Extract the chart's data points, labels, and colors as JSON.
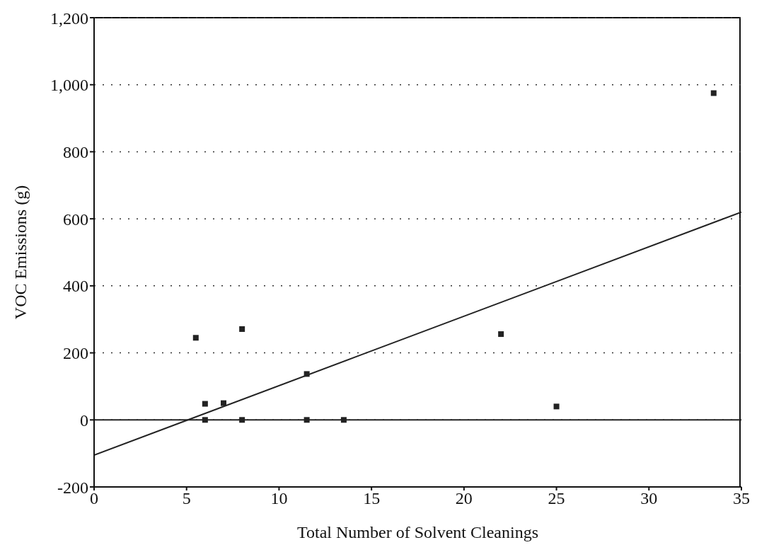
{
  "chart_data": {
    "type": "scatter",
    "xlabel": "Total Number of Solvent Cleanings",
    "ylabel": "VOC Emissions (g)",
    "xlim": [
      0,
      35
    ],
    "xticks": [
      0,
      5,
      10,
      15,
      20,
      25,
      30,
      35
    ],
    "ylim": [
      -200,
      1200
    ],
    "yticks": [
      -200,
      0,
      {
        "value": 200,
        "label": "200"
      },
      400,
      600,
      800,
      {
        "value": 1000,
        "label": "1,000"
      },
      {
        "value": 1200,
        "label": "1,200"
      }
    ],
    "grid": "y",
    "marker": "square",
    "legend": false,
    "series": [
      {
        "color": "#222222",
        "x": [
          5.5,
          8,
          6,
          7,
          11.5,
          6,
          8,
          11.5,
          13.5,
          22,
          25,
          33.5
        ],
        "values": [
          245,
          271,
          48,
          50,
          137,
          0,
          0,
          0,
          0,
          256,
          40,
          975
        ]
      },
      {
        "type": "line",
        "color": "#222222",
        "x": [
          0,
          35
        ],
        "values": [
          -105,
          620
        ],
        "line_style": "solid",
        "marker": "none"
      }
    ],
    "ref_lines": [
      {
        "axis": "y",
        "value": 0,
        "color": "#222222",
        "line_style": "solid"
      }
    ]
  }
}
